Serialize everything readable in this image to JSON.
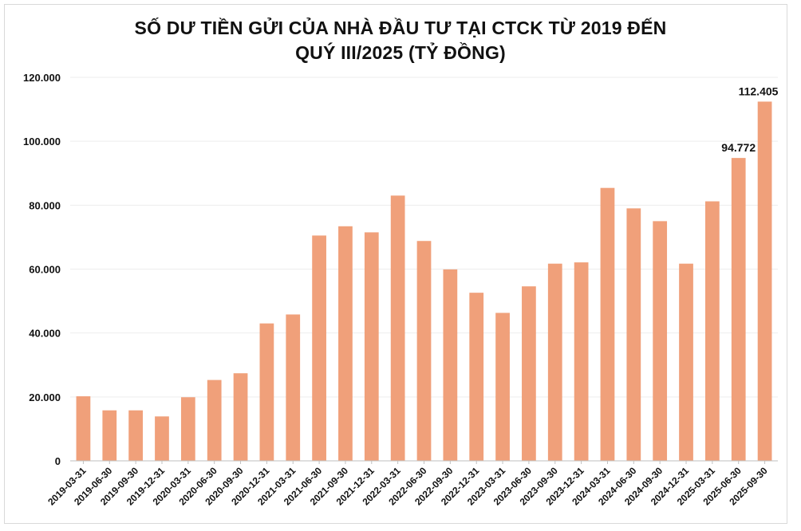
{
  "chart_data": {
    "type": "bar",
    "title_line1": "SỐ DƯ TIỀN GỬI CỦA NHÀ ĐẦU TƯ TẠI CTCK TỪ 2019 ĐẾN",
    "title_line2": "QUÝ III/2025 (TỶ ĐỒNG)",
    "xlabel": "",
    "ylabel": "",
    "ylim": [
      0,
      120000
    ],
    "yticks": [
      0,
      20000,
      40000,
      60000,
      80000,
      100000,
      120000
    ],
    "ytick_labels": [
      "0",
      "20.000",
      "40.000",
      "60.000",
      "80.000",
      "100.000",
      "120.000"
    ],
    "grid": true,
    "bar_color": "#F0A07A",
    "categories": [
      "2019-03-31",
      "2019-06-30",
      "2019-09-30",
      "2019-12-31",
      "2020-03-31",
      "2020-06-30",
      "2020-09-30",
      "2020-12-31",
      "2021-03-31",
      "2021-06-30",
      "2021-09-30",
      "2021-12-31",
      "2022-03-31",
      "2022-06-30",
      "2022-09-30",
      "2022-12-31",
      "2023-03-31",
      "2023-06-30",
      "2023-09-30",
      "2023-12-31",
      "2024-03-31",
      "2024-06-30",
      "2024-09-30",
      "2024-12-31",
      "2025-03-31",
      "2025-06-30",
      "2025-09-30"
    ],
    "values": [
      20200,
      15800,
      15800,
      13900,
      19900,
      25300,
      27400,
      43000,
      45800,
      70500,
      73400,
      71500,
      83000,
      68800,
      59900,
      52600,
      46300,
      54600,
      61700,
      62100,
      85400,
      79000,
      75000,
      61700,
      81200,
      94772,
      112405
    ],
    "data_labels": [
      {
        "index": 25,
        "text": "94.772"
      },
      {
        "index": 26,
        "text": "112.405"
      }
    ]
  }
}
